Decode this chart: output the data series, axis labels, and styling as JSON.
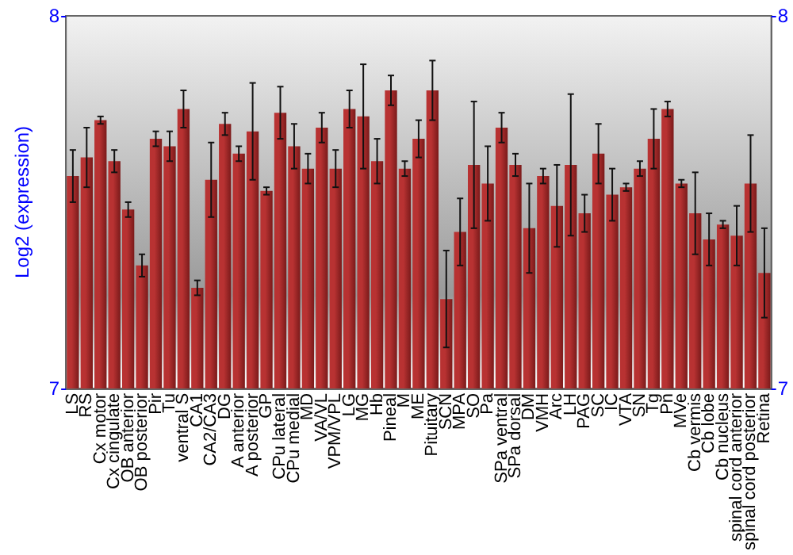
{
  "chart_data": {
    "type": "bar",
    "ylabel": "Log2 (expression)",
    "categories": [
      "LS",
      "RS",
      "Cx motor",
      "Cx cingulate",
      "OB anterior",
      "OB posterior",
      "Pir",
      "Tu",
      "ventral S",
      "CA1",
      "CA2/CA3",
      "DG",
      "A anterior",
      "A posterior",
      "GP",
      "CPu lateral",
      "CPu medial",
      "MD",
      "VA/VL",
      "VPM/VPL",
      "LG",
      "MG",
      "Hb",
      "Pineal",
      "M",
      "ME",
      "Pituitary",
      "SCN",
      "MPA",
      "SO",
      "Pa",
      "SPa ventral",
      "SPa dorsal",
      "DM",
      "VMH",
      "Arc",
      "LH",
      "PAG",
      "SC",
      "IC",
      "VTA",
      "SN",
      "Tg",
      "Pn",
      "MVe",
      "Cb vermis",
      "Cb lobe",
      "Cb nucleus",
      "spinal cord anterior",
      "spinal cord posterior",
      "Retina"
    ],
    "values": [
      7.57,
      7.62,
      7.72,
      7.61,
      7.48,
      7.33,
      7.67,
      7.65,
      7.75,
      7.27,
      7.56,
      7.71,
      7.63,
      7.69,
      7.53,
      7.74,
      7.65,
      7.59,
      7.7,
      7.59,
      7.75,
      7.73,
      7.61,
      7.8,
      7.59,
      7.67,
      7.8,
      7.24,
      7.42,
      7.6,
      7.55,
      7.7,
      7.6,
      7.43,
      7.57,
      7.49,
      7.6,
      7.47,
      7.63,
      7.52,
      7.54,
      7.59,
      7.67,
      7.75,
      7.55,
      7.47,
      7.4,
      7.44,
      7.41,
      7.55,
      7.31
    ],
    "errors": [
      0.07,
      0.08,
      0.01,
      0.03,
      0.02,
      0.03,
      0.02,
      0.04,
      0.05,
      0.02,
      0.1,
      0.03,
      0.02,
      0.13,
      0.01,
      0.07,
      0.06,
      0.04,
      0.04,
      0.05,
      0.05,
      0.14,
      0.06,
      0.04,
      0.02,
      0.05,
      0.08,
      0.13,
      0.09,
      0.17,
      0.1,
      0.04,
      0.03,
      0.12,
      0.02,
      0.11,
      0.19,
      0.05,
      0.08,
      0.07,
      0.01,
      0.02,
      0.08,
      0.02,
      0.01,
      0.11,
      0.07,
      0.01,
      0.08,
      0.13,
      0.12
    ],
    "color": "#b83232",
    "ylim": [
      7,
      8
    ],
    "yticks": [
      7,
      8
    ],
    "y2lim": [
      7,
      8
    ],
    "y2ticks": [
      7,
      8
    ],
    "grid": false
  }
}
